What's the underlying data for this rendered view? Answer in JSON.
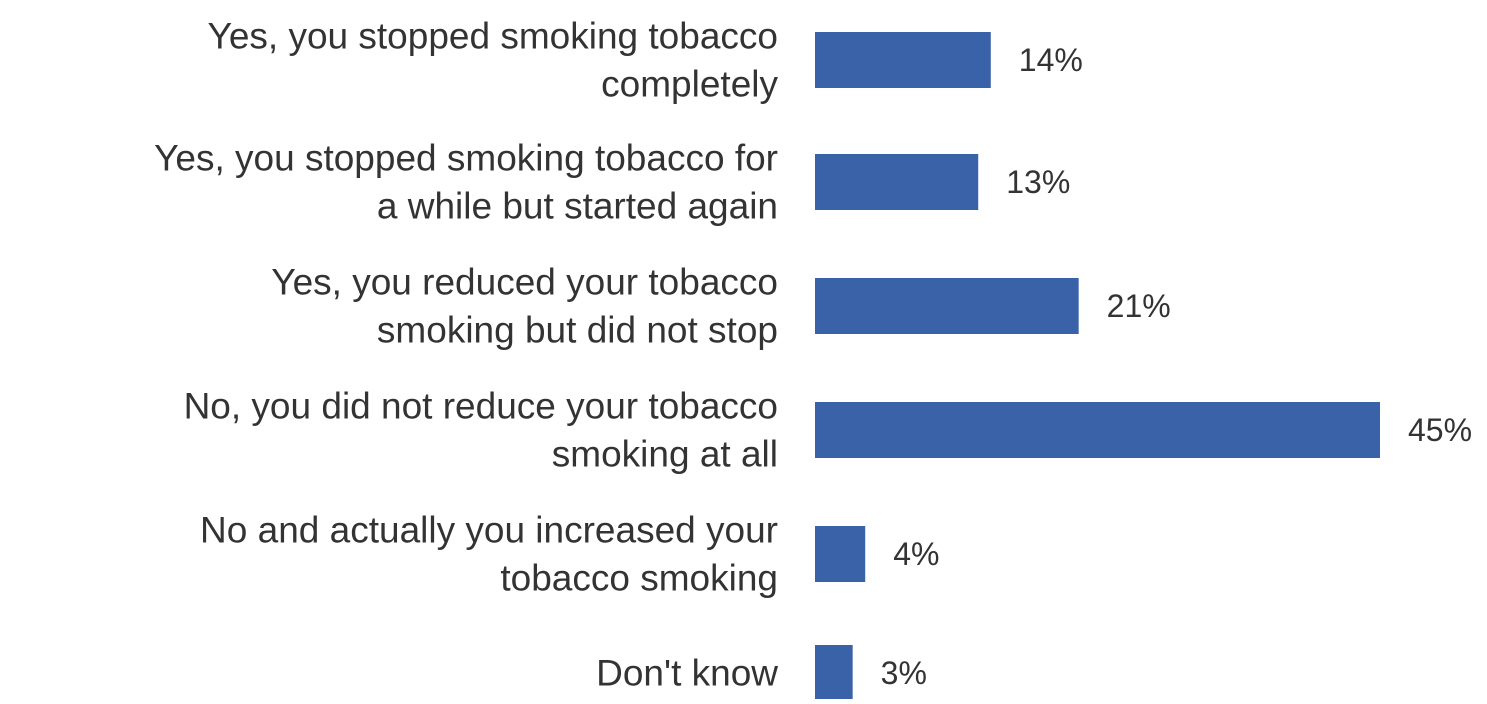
{
  "chart_data": {
    "type": "bar",
    "orientation": "horizontal",
    "categories": [
      [
        "Yes, you stopped smoking tobacco",
        "completely"
      ],
      [
        "Yes, you stopped smoking tobacco for",
        "a while but started again"
      ],
      [
        "Yes, you reduced your tobacco",
        "smoking but did not stop"
      ],
      [
        "No, you did not reduce your tobacco",
        "smoking at all"
      ],
      [
        "No and actually you increased your",
        "tobacco smoking"
      ],
      [
        "Don't know"
      ]
    ],
    "values": [
      14,
      13,
      21,
      45,
      4,
      3
    ],
    "data_labels": [
      "14%",
      "13%",
      "21%",
      "45%",
      "4%",
      "3%"
    ],
    "title": "",
    "xlabel": "",
    "ylabel": "",
    "xlim": [
      0,
      45
    ],
    "grid": false,
    "legend": "none",
    "bar_color": "#3a62a8"
  }
}
